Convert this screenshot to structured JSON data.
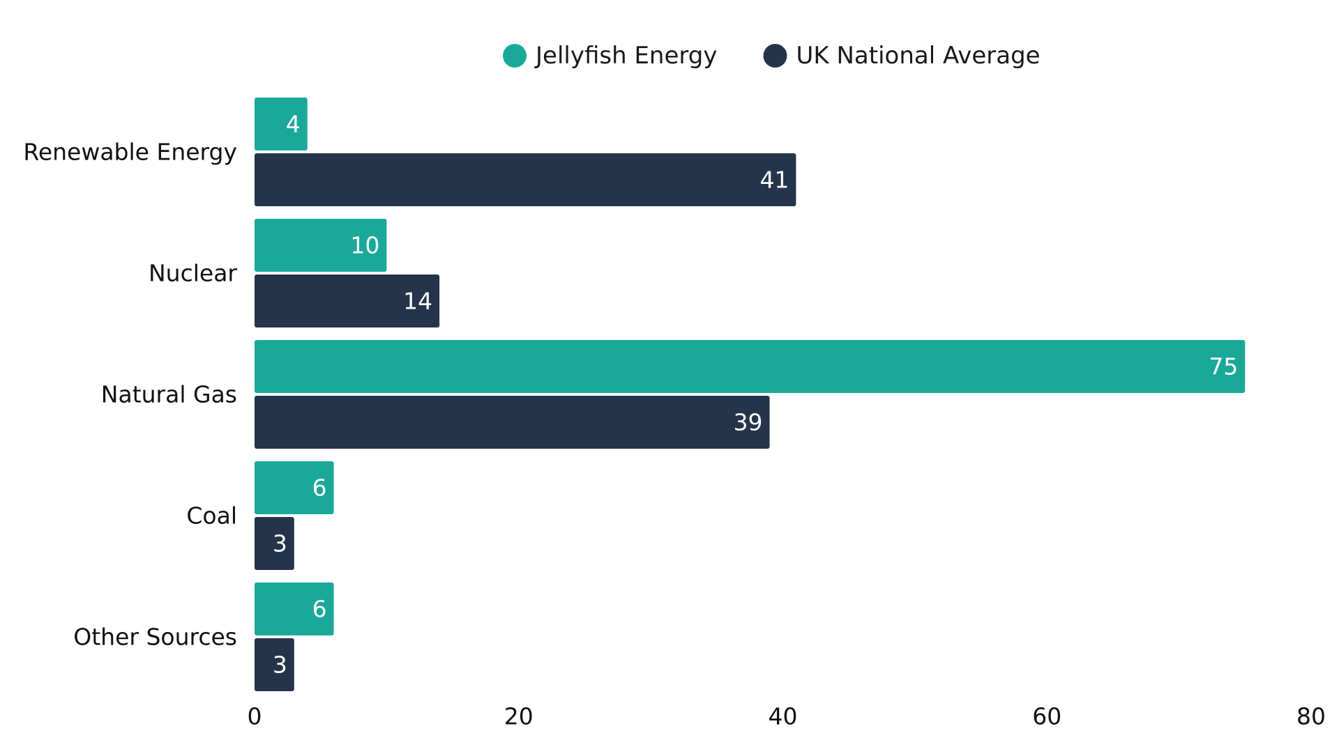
{
  "chart_data": {
    "type": "bar",
    "orientation": "horizontal",
    "categories": [
      "Renewable Energy",
      "Nuclear",
      "Natural Gas",
      "Coal",
      "Other Sources"
    ],
    "series": [
      {
        "name": "Jellyfish Energy",
        "color": "#1aa999",
        "values": [
          4,
          10,
          75,
          6,
          6
        ]
      },
      {
        "name": "UK National Average",
        "color": "#26344b",
        "values": [
          41,
          14,
          39,
          3,
          3
        ]
      }
    ],
    "xlim": [
      0,
      80
    ],
    "xticks": [
      0,
      20,
      40,
      60,
      80
    ],
    "title": "",
    "xlabel": "",
    "ylabel": "",
    "grid": false,
    "legend_position": "top",
    "data_labels": true
  }
}
